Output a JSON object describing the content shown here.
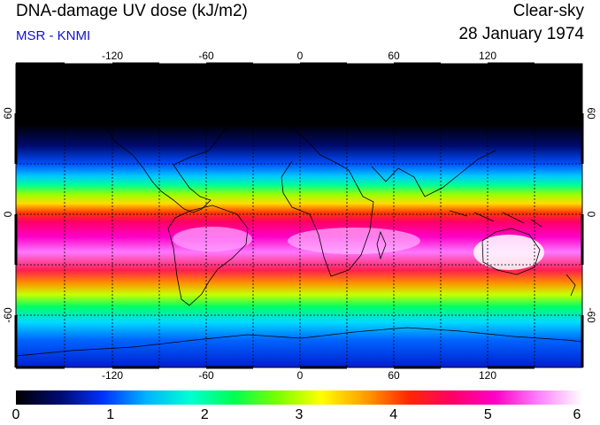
{
  "header": {
    "title": "DNA-damage UV dose (kJ/m2)",
    "source": "MSR - KNMI",
    "condition": "Clear-sky",
    "date": "28 January 1974"
  },
  "map": {
    "longitude_ticks": [
      "-120",
      "-60",
      "0",
      "60",
      "120"
    ],
    "latitude_ticks": [
      "60",
      "0",
      "-60"
    ],
    "extent": {
      "lon": [
        -180,
        180
      ],
      "lat": [
        -90,
        90
      ]
    },
    "land_color": "#000000",
    "grid_style": "dotted"
  },
  "colorbar": {
    "min": 0,
    "max": 6,
    "tick_labels": [
      "0",
      "1",
      "2",
      "3",
      "4",
      "5",
      "6"
    ],
    "colors": [
      "#000000",
      "#000a6e",
      "#0032ff",
      "#00b4ff",
      "#00ffd2",
      "#00ff50",
      "#78ff00",
      "#ffff00",
      "#ffa000",
      "#ff2800",
      "#ff0064",
      "#ff00c8",
      "#ff80ff",
      "#ffffff"
    ]
  }
}
